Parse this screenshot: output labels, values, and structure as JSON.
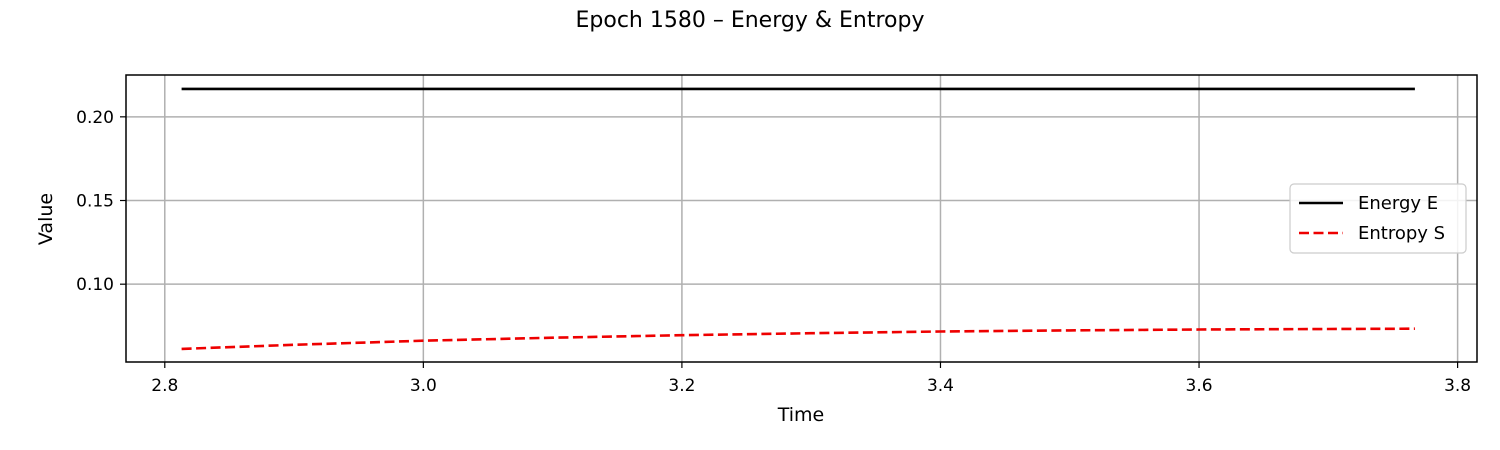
{
  "chart_data": {
    "type": "line",
    "title": "Epoch 1580 – Energy & Entropy",
    "xlabel": "Time",
    "ylabel": "Value",
    "xlim": [
      2.77,
      3.815
    ],
    "ylim": [
      0.0535,
      0.225
    ],
    "xticks": [
      2.8,
      3.0,
      3.2,
      3.4,
      3.6,
      3.8
    ],
    "xtick_labels": [
      "2.8",
      "3.0",
      "3.2",
      "3.4",
      "3.6",
      "3.8"
    ],
    "yticks": [
      0.1,
      0.15,
      0.2
    ],
    "ytick_labels": [
      "0.10",
      "0.15",
      "0.20"
    ],
    "grid": true,
    "legend_position": "center-right",
    "x": [
      2.813,
      2.9,
      3.0,
      3.1,
      3.2,
      3.3,
      3.4,
      3.5,
      3.6,
      3.7,
      3.767
    ],
    "series": [
      {
        "name": "Energy E",
        "color": "#000000",
        "style": "solid",
        "values": [
          0.2167,
          0.2167,
          0.2167,
          0.2167,
          0.2167,
          0.2167,
          0.2167,
          0.2167,
          0.2167,
          0.2167,
          0.2167
        ]
      },
      {
        "name": "Entropy S",
        "color": "#ee0000",
        "style": "dashed",
        "values": [
          0.0613,
          0.0638,
          0.0662,
          0.068,
          0.0695,
          0.0707,
          0.0717,
          0.0724,
          0.0729,
          0.0732,
          0.0734
        ]
      }
    ]
  }
}
